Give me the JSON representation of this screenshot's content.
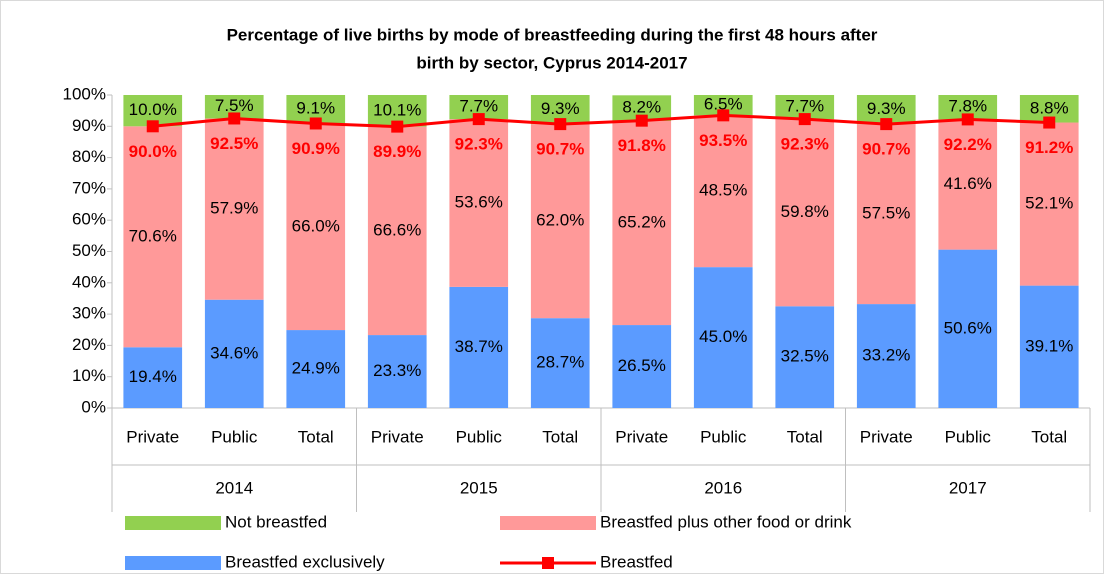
{
  "chart_data": {
    "type": "stacked_bar_line",
    "title": [
      "Percentage of live births by mode of breastfeeding during the first 48 hours after",
      "birth by sector, Cyprus 2014-2017"
    ],
    "categories": [
      "Private",
      "Public",
      "Total",
      "Private",
      "Public",
      "Total",
      "Private",
      "Public",
      "Total",
      "Private",
      "Public",
      "Total"
    ],
    "category_groups": [
      "2014",
      "2015",
      "2016",
      "2017"
    ],
    "ylim": [
      0,
      100
    ],
    "yticks": [
      {
        "value": 0,
        "label": "0%"
      },
      {
        "value": 10,
        "label": "10%"
      },
      {
        "value": 20,
        "label": "20%"
      },
      {
        "value": 30,
        "label": "30%"
      },
      {
        "value": 40,
        "label": "40%"
      },
      {
        "value": 50,
        "label": "50%"
      },
      {
        "value": 60,
        "label": "60%"
      },
      {
        "value": 70,
        "label": "70%"
      },
      {
        "value": 80,
        "label": "80%"
      },
      {
        "value": 90,
        "label": "90%"
      },
      {
        "value": 100,
        "label": "100%"
      }
    ],
    "grid": false,
    "legend": "bottom",
    "series": [
      {
        "name": "Not breastfed",
        "kind": "bar",
        "color": "#92d050",
        "values": [
          10.0,
          7.5,
          9.1,
          10.1,
          7.7,
          9.3,
          8.2,
          6.5,
          7.7,
          9.3,
          7.8,
          8.8
        ],
        "value_labels": [
          "10.0%",
          "7.5%",
          "9.1%",
          "10.1%",
          "7.7%",
          "9.3%",
          "8.2%",
          "6.5%",
          "7.7%",
          "9.3%",
          "7.8%",
          "8.8%"
        ]
      },
      {
        "name": "Breastfed plus other food or drink",
        "kind": "bar",
        "color": "#ff9999",
        "values": [
          70.6,
          57.9,
          66.0,
          66.6,
          53.6,
          62.0,
          65.2,
          48.5,
          59.8,
          57.5,
          41.6,
          52.1
        ],
        "value_labels": [
          "70.6%",
          "57.9%",
          "66.0%",
          "66.6%",
          "53.6%",
          "62.0%",
          "65.2%",
          "48.5%",
          "59.8%",
          "57.5%",
          "41.6%",
          "52.1%"
        ]
      },
      {
        "name": "Breastfed exclusively",
        "kind": "bar",
        "color": "#5b9bff",
        "values": [
          19.4,
          34.6,
          24.9,
          23.3,
          38.7,
          28.7,
          26.5,
          45.0,
          32.5,
          33.2,
          50.6,
          39.1
        ],
        "value_labels": [
          "19.4%",
          "34.6%",
          "24.9%",
          "23.3%",
          "38.7%",
          "28.7%",
          "26.5%",
          "45.0%",
          "32.5%",
          "33.2%",
          "50.6%",
          "39.1%"
        ]
      },
      {
        "name": "Breastfed",
        "kind": "line",
        "color": "#ff0000",
        "values": [
          90.0,
          92.5,
          90.9,
          89.9,
          92.3,
          90.7,
          91.8,
          93.5,
          92.3,
          90.7,
          92.2,
          91.2
        ],
        "value_labels": [
          "90.0%",
          "92.5%",
          "90.9%",
          "89.9%",
          "92.3%",
          "90.7%",
          "91.8%",
          "93.5%",
          "92.3%",
          "90.7%",
          "92.2%",
          "91.2%"
        ]
      }
    ]
  }
}
